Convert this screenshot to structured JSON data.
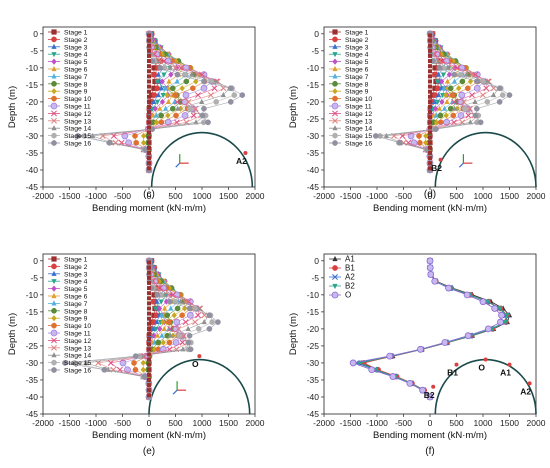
{
  "stage_names": [
    "Stage 1",
    "Stage 2",
    "Stage 3",
    "Stage 4",
    "Stage 5",
    "Stage 6",
    "Stage 7",
    "Stage 8",
    "Stage 9",
    "Stage 10",
    "Stage 11",
    "Stage 12",
    "Stage 13",
    "Stage 14",
    "Stage 15",
    "Stage 16"
  ],
  "stage_colors": [
    "#9b3030",
    "#d94040",
    "#3a6fd0",
    "#2aa68c",
    "#c050c8",
    "#e0a030",
    "#55b0e0",
    "#5a8a3a",
    "#c8a820",
    "#e07030",
    "#a080e0",
    "#e05080",
    "#e08080",
    "#909090",
    "#b0b0b0",
    "#9090a0"
  ],
  "chart_data": [
    {
      "type": "line",
      "panel_label": "(c)",
      "xlabel": "Bending moment (kN·m/m)",
      "ylabel": "Depth (m)",
      "xlim": [
        -2000,
        2000
      ],
      "ylim": [
        -45,
        2
      ],
      "xticks": [
        -2000,
        -1500,
        -1000,
        -500,
        0,
        500,
        1000,
        1500,
        2000
      ],
      "yticks": [
        0,
        -5,
        -10,
        -15,
        -20,
        -25,
        -30,
        -35,
        -40,
        -45
      ],
      "legend": "top-left",
      "pile_x": 0,
      "pile_top": -0.5,
      "pile_bottom": -40.5,
      "upper_peak": 1760,
      "lower_peak": -1900,
      "arc_center": 1000,
      "points": [
        {
          "label": "A2",
          "x": 1820,
          "y": -35
        }
      ],
      "series_stage_count": 16
    },
    {
      "type": "line",
      "panel_label": "(d)",
      "xlabel": "Bending moment (kN·m/m)",
      "ylabel": "Depth (m)",
      "xlim": [
        -2000,
        2000
      ],
      "ylim": [
        -45,
        2
      ],
      "xticks": [
        -2000,
        -1500,
        -1000,
        -500,
        0,
        500,
        1000,
        1500,
        2000
      ],
      "yticks": [
        0,
        -5,
        -10,
        -15,
        -20,
        -25,
        -30,
        -35,
        -40,
        -45
      ],
      "legend": "top-left",
      "pile_x": 0,
      "pile_top": -0.5,
      "pile_bottom": -40.5,
      "upper_peak": 1500,
      "lower_peak": -1500,
      "arc_center": 1050,
      "points": [
        {
          "label": "B2",
          "x": 200,
          "y": -37
        }
      ],
      "series_stage_count": 16
    },
    {
      "type": "line",
      "panel_label": "(e)",
      "xlabel": "Bending moment (kN·m/m)",
      "ylabel": "Depth (m)",
      "xlim": [
        -2000,
        2000
      ],
      "ylim": [
        -45,
        2
      ],
      "xticks": [
        -2000,
        -1500,
        -1000,
        -500,
        0,
        500,
        1000,
        1500,
        2000
      ],
      "yticks": [
        0,
        -5,
        -10,
        -15,
        -20,
        -25,
        -30,
        -35,
        -40,
        -45
      ],
      "legend": "top-left",
      "pile_x": 0,
      "pile_top": -0.5,
      "pile_bottom": -40.5,
      "upper_peak": 1300,
      "lower_peak": -2000,
      "arc_center": 950,
      "points": [
        {
          "label": "O",
          "x": 950,
          "y": -28
        }
      ],
      "series_stage_count": 16
    },
    {
      "type": "line",
      "panel_label": "(f)",
      "xlabel": "Bending moment (kN·m/m)",
      "ylabel": "Depth (m)",
      "xlim": [
        -2000,
        2000
      ],
      "ylim": [
        -45,
        2
      ],
      "xticks": [
        -2000,
        -1500,
        -1000,
        -500,
        0,
        500,
        1000,
        1500,
        2000
      ],
      "yticks": [
        0,
        -5,
        -10,
        -15,
        -20,
        -25,
        -30,
        -35,
        -40,
        -45
      ],
      "legend": "top-left",
      "arc_center": 1050,
      "series": [
        {
          "name": "A1",
          "color": "#333333",
          "marker": "triangle",
          "y": [
            0,
            -2,
            -4,
            -6,
            -8,
            -10,
            -12,
            -14,
            -16,
            -18,
            -20,
            -22,
            -24,
            -26,
            -28,
            -30,
            -32,
            -34,
            -36,
            -38,
            -40
          ],
          "x": [
            0,
            5,
            20,
            120,
            420,
            800,
            1150,
            1380,
            1500,
            1460,
            1200,
            800,
            330,
            -150,
            -700,
            -1300,
            -1000,
            -650,
            -350,
            -120,
            0
          ]
        },
        {
          "name": "B1",
          "color": "#d94040",
          "marker": "circle",
          "y": [
            0,
            -2,
            -4,
            -6,
            -8,
            -10,
            -12,
            -14,
            -16,
            -18,
            -20,
            -22,
            -24,
            -26,
            -28,
            -30,
            -32,
            -34,
            -36,
            -38,
            -40
          ],
          "x": [
            0,
            5,
            18,
            110,
            400,
            760,
            1100,
            1330,
            1460,
            1430,
            1180,
            780,
            320,
            -160,
            -720,
            -1250,
            -980,
            -630,
            -340,
            -110,
            0
          ]
        },
        {
          "name": "A2",
          "color": "#3a6fd0",
          "marker": "x",
          "y": [
            0,
            -2,
            -4,
            -6,
            -8,
            -10,
            -12,
            -14,
            -16,
            -18,
            -20,
            -22,
            -24,
            -26,
            -28,
            -30,
            -32,
            -34,
            -36,
            -38,
            -40
          ],
          "x": [
            0,
            4,
            15,
            100,
            380,
            740,
            1080,
            1310,
            1440,
            1410,
            1160,
            760,
            300,
            -170,
            -740,
            -1380,
            -1050,
            -680,
            -360,
            -130,
            0
          ]
        },
        {
          "name": "B2",
          "color": "#2aa68c",
          "marker": "triangle-down",
          "y": [
            0,
            -2,
            -4,
            -6,
            -8,
            -10,
            -12,
            -14,
            -16,
            -18,
            -20,
            -22,
            -24,
            -26,
            -28,
            -30,
            -32,
            -34,
            -36,
            -38,
            -40
          ],
          "x": [
            0,
            5,
            17,
            105,
            390,
            750,
            1090,
            1320,
            1450,
            1420,
            1170,
            770,
            310,
            -165,
            -730,
            -1330,
            -1020,
            -660,
            -350,
            -125,
            0
          ]
        },
        {
          "name": "O",
          "color": "#8a6ad0",
          "marker": "circle-open",
          "y": [
            0,
            -2,
            -4,
            -6,
            -8,
            -10,
            -12,
            -14,
            -16,
            -18,
            -20,
            -22,
            -24,
            -26,
            -28,
            -30,
            -32,
            -34,
            -36,
            -38,
            -40
          ],
          "x": [
            0,
            4,
            14,
            90,
            350,
            700,
            1000,
            1220,
            1350,
            1330,
            1100,
            720,
            280,
            -180,
            -760,
            -1450,
            -1100,
            -700,
            -380,
            -140,
            0
          ]
        }
      ],
      "points": [
        {
          "label": "A1",
          "x": 1500,
          "y": -30.5
        },
        {
          "label": "B1",
          "x": 500,
          "y": -30.5
        },
        {
          "label": "O",
          "x": 1050,
          "y": -29
        },
        {
          "label": "A2",
          "x": 1880,
          "y": -36
        },
        {
          "label": "B2",
          "x": 60,
          "y": -37
        }
      ]
    }
  ]
}
